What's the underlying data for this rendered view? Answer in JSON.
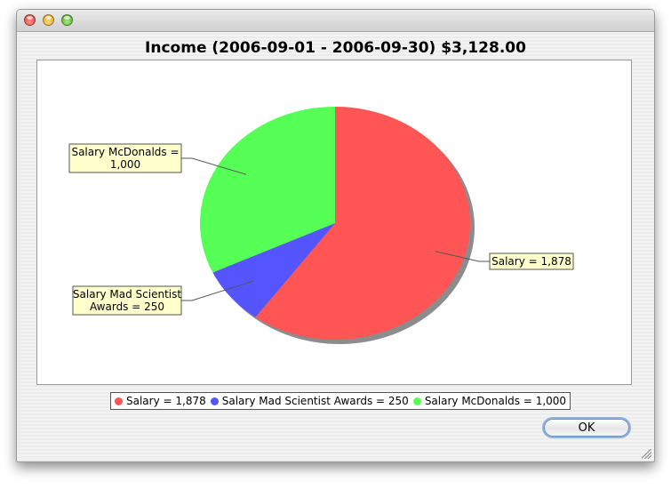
{
  "window": {
    "controls": [
      "close-icon",
      "minimize-icon",
      "zoom-icon"
    ]
  },
  "chart_data": {
    "type": "pie",
    "title": "Income (2006-09-01 - 2006-09-30) $3,128.00",
    "start_angle_deg": 90,
    "direction": "clockwise",
    "slices": [
      {
        "name": "Salary",
        "value": 1878,
        "color": "#ff5555",
        "label_lines": [
          "Salary = 1,878"
        ],
        "legend": "Salary = 1,878"
      },
      {
        "name": "Salary Mad Scientist Awards",
        "value": 250,
        "color": "#5555ff",
        "label_lines": [
          "Salary Mad Scientist",
          "Awards = 250"
        ],
        "legend": "Salary Mad Scientist Awards = 250"
      },
      {
        "name": "Salary McDonalds",
        "value": 1000,
        "color": "#55ff55",
        "label_lines": [
          "Salary McDonalds =",
          "1,000"
        ],
        "legend": "Salary McDonalds = 1,000"
      }
    ],
    "legend_placement": "bottom"
  },
  "buttons": {
    "ok_label": "OK"
  }
}
